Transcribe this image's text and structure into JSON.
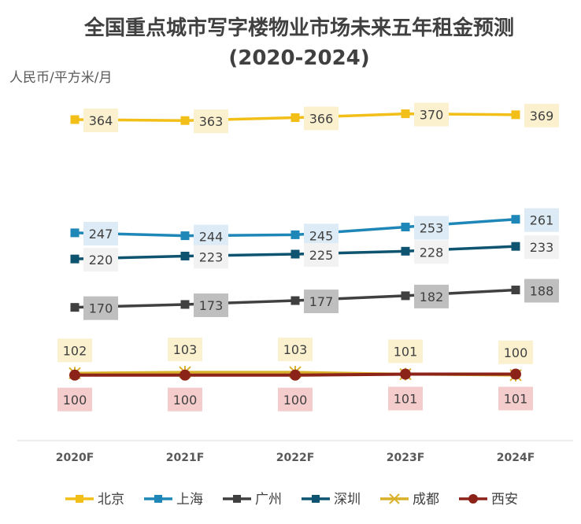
{
  "chart_data": {
    "type": "line",
    "title_line1": "全国重点城市写字楼物业市场未来五年租金预测",
    "title_line2": "(2020-2024)",
    "unit": "人民币/平方米/月",
    "categories": [
      "2020F",
      "2021F",
      "2022F",
      "2023F",
      "2024F"
    ],
    "ylim": [
      60,
      390
    ],
    "grid": false,
    "legend_position": "bottom",
    "series": [
      {
        "name": "北京",
        "values": [
          364,
          363,
          366,
          370,
          369
        ],
        "color": "#F2BE18",
        "marker": "square",
        "label_bg": "#FCF1CF",
        "label_pos": "right"
      },
      {
        "name": "上海",
        "values": [
          247,
          244,
          245,
          253,
          261
        ],
        "color": "#1F87B8",
        "marker": "square",
        "label_bg": "#DCEBF5",
        "label_pos": "right"
      },
      {
        "name": "广州",
        "values": [
          170,
          173,
          177,
          182,
          188
        ],
        "color": "#404040",
        "marker": "square",
        "label_bg": "#BFBFBF",
        "label_pos": "right"
      },
      {
        "name": "深圳",
        "values": [
          220,
          223,
          225,
          228,
          233
        ],
        "color": "#0E5470",
        "marker": "square",
        "label_bg": "#F2F2F2",
        "label_pos": "right"
      },
      {
        "name": "成都",
        "values": [
          102,
          103,
          103,
          101,
          100
        ],
        "color": "#D9B02A",
        "marker": "star",
        "label_bg": "#FCF1CF",
        "label_pos": "above"
      },
      {
        "name": "西安",
        "values": [
          100,
          100,
          100,
          101,
          101
        ],
        "color": "#8C2318",
        "marker": "circle",
        "label_bg": "#F4CCCC",
        "label_pos": "below"
      }
    ]
  }
}
